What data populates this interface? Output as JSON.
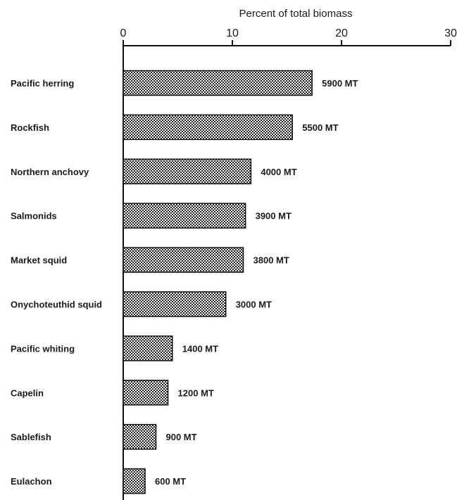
{
  "chart_data": {
    "type": "bar",
    "orientation": "horizontal",
    "title": "",
    "xlabel": "Percent of total biomass",
    "ylabel": "",
    "xlim": [
      0,
      30
    ],
    "ticks": [
      0,
      10,
      20,
      30
    ],
    "grid": false,
    "bar_color": "#222222",
    "categories": [
      "Pacific herring",
      "Rockfish",
      "Northern anchovy",
      "Salmonids",
      "Market squid",
      "Onychoteuthid squid",
      "Pacific whiting",
      "Capelin",
      "Sablefish",
      "Eulachon"
    ],
    "values": [
      17.3,
      15.5,
      11.7,
      11.2,
      11.0,
      9.4,
      4.5,
      4.1,
      3.0,
      2.0
    ],
    "data_labels": [
      "5900 MT",
      "5500 MT",
      "4000 MT",
      "3900 MT",
      "3800 MT",
      "3000 MT",
      "1400 MT",
      "1200 MT",
      "900 MT",
      "600 MT"
    ]
  }
}
